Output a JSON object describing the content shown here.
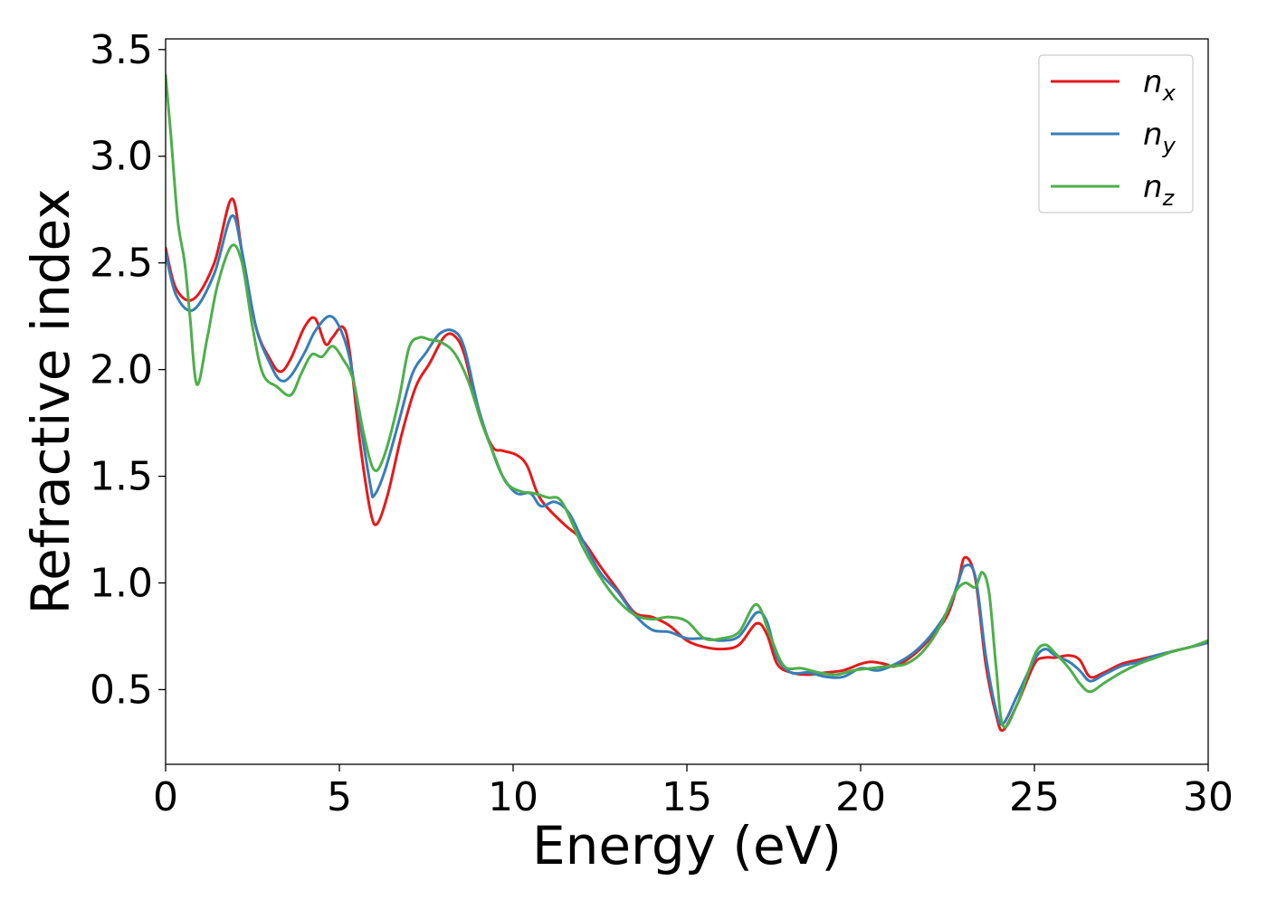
{
  "chart_data": {
    "type": "line",
    "title": "",
    "xlabel": "Energy (eV)",
    "ylabel": "Refractive index",
    "xlim": [
      0,
      30
    ],
    "ylim": [
      0.15,
      3.55
    ],
    "xticks": [
      0,
      5,
      10,
      15,
      20,
      25,
      30
    ],
    "xtick_labels": [
      "0",
      "5",
      "10",
      "15",
      "20",
      "25",
      "30"
    ],
    "yticks": [
      0.5,
      1.0,
      1.5,
      2.0,
      2.5,
      3.0,
      3.5
    ],
    "ytick_labels": [
      "0.5",
      "1.0",
      "1.5",
      "2.0",
      "2.5",
      "3.0",
      "3.5"
    ],
    "grid": false,
    "legend_position": "top-right",
    "series": [
      {
        "name": "n_x",
        "legend_base": "n",
        "legend_sub": "x",
        "color": "#e41a1c",
        "x": [
          0,
          0.3,
          0.8,
          1.4,
          1.9,
          2.2,
          2.6,
          3.0,
          3.3,
          3.6,
          4.0,
          4.3,
          4.6,
          4.8,
          5.1,
          5.3,
          5.6,
          5.9,
          6.1,
          6.4,
          6.8,
          7.2,
          7.6,
          8.0,
          8.3,
          8.6,
          9.0,
          9.4,
          9.7,
          10.1,
          10.4,
          10.7,
          11.0,
          11.5,
          12.0,
          12.5,
          13.0,
          13.5,
          14.0,
          14.5,
          15.0,
          15.5,
          16.0,
          16.5,
          17.0,
          17.3,
          17.6,
          18.0,
          18.5,
          19.0,
          19.5,
          20.0,
          20.3,
          20.7,
          21.0,
          21.5,
          22.0,
          22.5,
          22.8,
          23.0,
          23.3,
          23.6,
          23.9,
          24.1,
          24.5,
          25.0,
          25.3,
          25.6,
          26.0,
          26.3,
          26.6,
          27.0,
          27.5,
          28.0,
          28.5,
          29.0,
          29.5,
          30.0
        ],
        "values": [
          2.57,
          2.38,
          2.33,
          2.5,
          2.8,
          2.55,
          2.2,
          2.05,
          1.99,
          2.05,
          2.2,
          2.24,
          2.12,
          2.15,
          2.2,
          2.08,
          1.65,
          1.33,
          1.28,
          1.42,
          1.7,
          1.92,
          2.03,
          2.15,
          2.16,
          2.07,
          1.8,
          1.64,
          1.62,
          1.6,
          1.55,
          1.42,
          1.35,
          1.27,
          1.2,
          1.08,
          0.97,
          0.86,
          0.84,
          0.8,
          0.73,
          0.7,
          0.69,
          0.71,
          0.81,
          0.76,
          0.62,
          0.58,
          0.57,
          0.58,
          0.59,
          0.62,
          0.63,
          0.62,
          0.61,
          0.66,
          0.74,
          0.85,
          1.0,
          1.12,
          1.02,
          0.62,
          0.38,
          0.31,
          0.43,
          0.62,
          0.65,
          0.65,
          0.66,
          0.64,
          0.56,
          0.58,
          0.62,
          0.64,
          0.66,
          0.68,
          0.7,
          0.72
        ]
      },
      {
        "name": "n_y",
        "legend_base": "n",
        "legend_sub": "y",
        "color": "#377eb8",
        "x": [
          0,
          0.3,
          0.8,
          1.4,
          1.9,
          2.2,
          2.6,
          3.0,
          3.3,
          3.6,
          4.0,
          4.3,
          4.7,
          5.0,
          5.3,
          5.6,
          5.9,
          6.0,
          6.3,
          6.7,
          7.1,
          7.5,
          7.9,
          8.3,
          8.6,
          9.0,
          9.4,
          9.7,
          10.1,
          10.5,
          10.8,
          11.2,
          11.6,
          12.0,
          12.5,
          13.0,
          13.5,
          14.0,
          14.5,
          15.0,
          15.5,
          16.0,
          16.5,
          17.0,
          17.3,
          17.6,
          18.0,
          18.5,
          19.0,
          19.5,
          20.0,
          20.5,
          21.0,
          21.5,
          22.0,
          22.5,
          22.8,
          23.0,
          23.3,
          23.6,
          23.9,
          24.1,
          24.5,
          25.0,
          25.3,
          25.6,
          26.0,
          26.3,
          26.6,
          27.0,
          27.5,
          28.0,
          28.5,
          29.0,
          29.5,
          30.0
        ],
        "values": [
          2.55,
          2.35,
          2.28,
          2.45,
          2.72,
          2.55,
          2.2,
          2.03,
          1.95,
          1.97,
          2.08,
          2.18,
          2.25,
          2.2,
          2.05,
          1.75,
          1.45,
          1.41,
          1.52,
          1.75,
          1.98,
          2.08,
          2.17,
          2.18,
          2.1,
          1.82,
          1.62,
          1.5,
          1.42,
          1.42,
          1.36,
          1.38,
          1.33,
          1.2,
          1.05,
          0.96,
          0.85,
          0.78,
          0.77,
          0.74,
          0.74,
          0.73,
          0.75,
          0.86,
          0.82,
          0.65,
          0.58,
          0.58,
          0.56,
          0.56,
          0.6,
          0.59,
          0.62,
          0.67,
          0.75,
          0.87,
          1.0,
          1.08,
          1.03,
          0.66,
          0.4,
          0.34,
          0.47,
          0.64,
          0.69,
          0.66,
          0.63,
          0.59,
          0.54,
          0.57,
          0.61,
          0.63,
          0.66,
          0.68,
          0.7,
          0.72
        ]
      },
      {
        "name": "n_z",
        "legend_base": "n",
        "legend_sub": "z",
        "color": "#4daf4a",
        "x": [
          0,
          0.15,
          0.35,
          0.55,
          0.7,
          0.9,
          1.2,
          1.5,
          1.9,
          2.2,
          2.5,
          2.8,
          3.2,
          3.6,
          3.9,
          4.2,
          4.5,
          4.8,
          5.1,
          5.4,
          5.7,
          6.0,
          6.3,
          6.7,
          7.0,
          7.3,
          7.6,
          7.9,
          8.3,
          8.7,
          9.1,
          9.5,
          9.8,
          10.2,
          10.6,
          11.0,
          11.4,
          12.0,
          12.5,
          13.0,
          13.5,
          14.0,
          14.5,
          15.0,
          15.5,
          16.0,
          16.5,
          17.0,
          17.4,
          17.8,
          18.3,
          18.8,
          19.3,
          19.8,
          20.3,
          20.8,
          21.3,
          21.8,
          22.3,
          22.7,
          23.0,
          23.3,
          23.5,
          23.7,
          23.9,
          24.1,
          24.5,
          25.0,
          25.3,
          25.6,
          26.0,
          26.3,
          26.6,
          27.0,
          27.5,
          28.0,
          28.5,
          29.0,
          29.5,
          30.0
        ],
        "values": [
          3.38,
          3.1,
          2.7,
          2.5,
          2.25,
          1.93,
          2.15,
          2.4,
          2.58,
          2.5,
          2.2,
          1.98,
          1.92,
          1.88,
          1.98,
          2.07,
          2.06,
          2.11,
          2.05,
          1.95,
          1.7,
          1.53,
          1.6,
          1.85,
          2.1,
          2.15,
          2.14,
          2.13,
          2.08,
          1.95,
          1.75,
          1.58,
          1.47,
          1.43,
          1.42,
          1.4,
          1.38,
          1.17,
          1.03,
          0.92,
          0.85,
          0.83,
          0.84,
          0.82,
          0.74,
          0.74,
          0.77,
          0.9,
          0.75,
          0.61,
          0.6,
          0.58,
          0.57,
          0.59,
          0.6,
          0.61,
          0.62,
          0.68,
          0.8,
          0.95,
          1.0,
          0.98,
          1.05,
          0.95,
          0.6,
          0.33,
          0.43,
          0.66,
          0.71,
          0.67,
          0.6,
          0.53,
          0.49,
          0.53,
          0.58,
          0.62,
          0.65,
          0.68,
          0.7,
          0.73
        ]
      }
    ]
  }
}
